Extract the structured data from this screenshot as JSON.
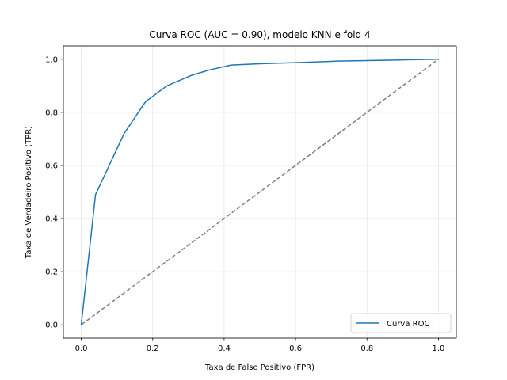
{
  "chart_data": {
    "type": "line",
    "title": "Curva ROC (AUC = 0.90), modelo KNN e fold 4",
    "xlabel": "Taxa de Falso Positivo (FPR)",
    "ylabel": "Taxa de Verdadeiro Positivo (TPR)",
    "xlim": [
      -0.05,
      1.05
    ],
    "ylim": [
      -0.05,
      1.05
    ],
    "xticks": [
      0.0,
      0.2,
      0.4,
      0.6,
      0.8,
      1.0
    ],
    "yticks": [
      0.0,
      0.2,
      0.4,
      0.6,
      0.8,
      1.0
    ],
    "xtick_labels": [
      "0.0",
      "0.2",
      "0.4",
      "0.6",
      "0.8",
      "1.0"
    ],
    "ytick_labels": [
      "0.0",
      "0.2",
      "0.4",
      "0.6",
      "0.8",
      "1.0"
    ],
    "grid": true,
    "legend": {
      "position": "lower-right"
    },
    "series": [
      {
        "name": "Curva ROC",
        "color": "#1f77b4",
        "style": "solid",
        "x": [
          0.0,
          0.04,
          0.12,
          0.18,
          0.24,
          0.31,
          0.36,
          0.42,
          0.5,
          0.6,
          0.72,
          0.85,
          1.0
        ],
        "y": [
          0.0,
          0.49,
          0.72,
          0.84,
          0.9,
          0.94,
          0.96,
          0.978,
          0.983,
          0.987,
          0.993,
          0.996,
          1.0
        ]
      },
      {
        "color": "#808080",
        "style": "dashed",
        "x": [
          0.0,
          1.0
        ],
        "y": [
          0.0,
          1.0
        ]
      }
    ]
  }
}
